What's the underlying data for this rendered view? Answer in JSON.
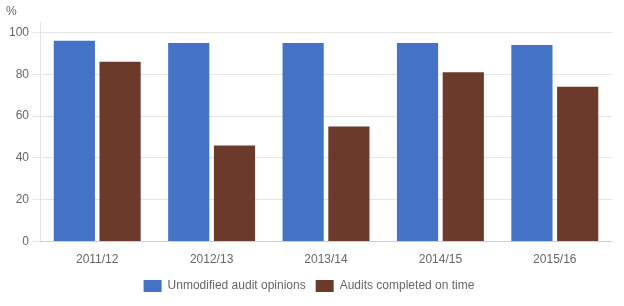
{
  "chart_data": {
    "type": "bar",
    "ylabel": "%",
    "categories": [
      "2011/12",
      "2012/13",
      "2013/14",
      "2014/15",
      "2015/16"
    ],
    "series": [
      {
        "name": "Unmodified audit opinions",
        "color": "#4472C4",
        "values": [
          96,
          95,
          95,
          95,
          94
        ]
      },
      {
        "name": "Audits completed on time",
        "color": "#6B3A2A",
        "values": [
          86,
          46,
          55,
          81,
          74
        ]
      }
    ],
    "ylim": [
      0,
      105
    ],
    "yticks": [
      0,
      20,
      40,
      60,
      80,
      100
    ],
    "grid": true,
    "legend": "bottom"
  }
}
